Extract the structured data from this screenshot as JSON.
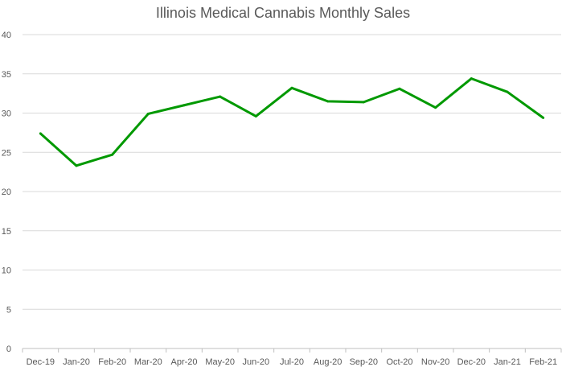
{
  "chart_data": {
    "type": "line",
    "title": "Illinois Medical Cannabis Monthly Sales",
    "xlabel": "",
    "ylabel": "",
    "categories": [
      "Dec-19",
      "Jan-20",
      "Feb-20",
      "Mar-20",
      "Apr-20",
      "May-20",
      "Jun-20",
      "Jul-20",
      "Aug-20",
      "Sep-20",
      "Oct-20",
      "Nov-20",
      "Dec-20",
      "Jan-21",
      "Feb-21"
    ],
    "series": [
      {
        "values": [
          27.4,
          23.3,
          24.7,
          29.9,
          31.0,
          32.1,
          29.6,
          33.2,
          31.5,
          31.4,
          33.1,
          30.7,
          34.4,
          32.7,
          29.4
        ],
        "color": "#009900"
      }
    ],
    "ylim": [
      0,
      40
    ],
    "yticks": [
      0,
      5,
      10,
      15,
      20,
      25,
      30,
      35,
      40
    ],
    "grid": true,
    "legend": "none"
  }
}
